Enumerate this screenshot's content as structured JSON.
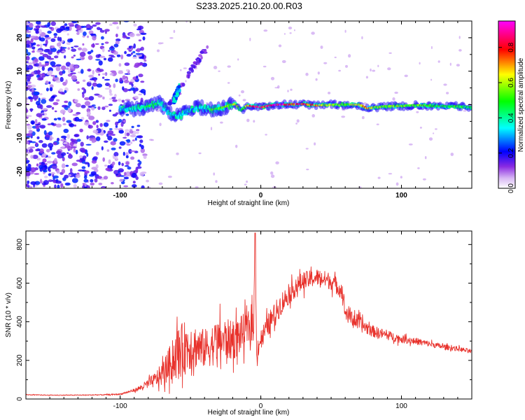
{
  "title": "S233.2025.210.20.00.R03",
  "chart_data": [
    {
      "type": "heatmap",
      "xlabel": "Height of straight line (km)",
      "ylabel": "Frequency (Hz)",
      "xlim": [
        -167,
        150
      ],
      "ylim": [
        -25,
        25
      ],
      "x_ticks": [
        -100,
        0,
        100
      ],
      "x_tick_labels": [
        "-100",
        "0",
        "100"
      ],
      "y_ticks": [
        -20,
        -10,
        0,
        10,
        20
      ],
      "y_tick_labels": [
        "-20",
        "-10",
        "0",
        "10",
        "20"
      ],
      "colorbar": {
        "label": "Normalized spectral amplitude",
        "range": [
          0,
          0.95
        ],
        "ticks": [
          0,
          0.2,
          0.4,
          0.6,
          0.8
        ],
        "tick_labels": [
          "0.0",
          "0.2",
          "0.4",
          "0.6",
          "0.8"
        ],
        "colormap": [
          "#ffffff",
          "#8a2be2",
          "#0000ff",
          "#00ffff",
          "#00ff00",
          "#ffff00",
          "#ff0000",
          "#ff00ff"
        ]
      },
      "ridge": {
        "x": [
          -100,
          -90,
          -80,
          -72,
          -65,
          -58,
          -50,
          -42,
          -35,
          -28,
          -22,
          -18,
          -14,
          -10,
          -5,
          0,
          10,
          20,
          30,
          40,
          50,
          60,
          70,
          76,
          80,
          90,
          100,
          110,
          120,
          130,
          140,
          150
        ],
        "frequency": [
          -1.5,
          -1.2,
          -0.5,
          0.5,
          -2.5,
          -3.5,
          -1.5,
          -0.8,
          -1.5,
          -1.0,
          -0.2,
          0.2,
          -1.8,
          -0.3,
          -0.5,
          -0.8,
          0.0,
          0.0,
          0.2,
          -0.2,
          0.0,
          0.0,
          0.0,
          -1.2,
          -0.8,
          -0.5,
          -0.4,
          -0.2,
          -0.3,
          -0.5,
          -0.5,
          -0.8
        ],
        "amplitude": [
          0.3,
          0.4,
          0.5,
          0.4,
          0.3,
          0.35,
          0.3,
          0.35,
          0.5,
          0.55,
          0.6,
          0.7,
          0.5,
          0.7,
          0.85,
          0.85,
          0.95,
          0.9,
          0.85,
          0.7,
          0.6,
          0.55,
          0.7,
          0.8,
          0.6,
          0.6,
          0.55,
          0.6,
          0.55,
          0.5,
          0.5,
          0.45
        ]
      },
      "branches": [
        {
          "x": [
            -65,
            -55,
            -50,
            -45,
            -38
          ],
          "frequency": [
            0,
            6,
            10,
            13,
            17
          ],
          "amplitude": 0.15
        },
        {
          "x": [
            -62,
            -60,
            -58
          ],
          "frequency": [
            1,
            3,
            5
          ],
          "amplitude": 0.35
        }
      ]
    },
    {
      "type": "line",
      "xlabel": "Height of straight line (km)",
      "ylabel": "SNR (10 * v/v)",
      "xlim": [
        -167,
        150
      ],
      "ylim": [
        0,
        870
      ],
      "x_ticks": [
        -100,
        0,
        100
      ],
      "x_tick_labels": [
        "-100",
        "0",
        "100"
      ],
      "y_ticks": [
        0,
        200,
        400,
        600,
        800
      ],
      "y_tick_labels": [
        "0",
        "200",
        "400",
        "600",
        "800"
      ],
      "series": [
        {
          "color": "#e8322c",
          "x": [
            -167,
            -150,
            -130,
            -110,
            -100,
            -95,
            -90,
            -85,
            -80,
            -75,
            -70,
            -65,
            -60,
            -55,
            -50,
            -45,
            -40,
            -35,
            -30,
            -25,
            -20,
            -15,
            -10,
            -5,
            -4,
            -3,
            0,
            5,
            10,
            15,
            20,
            25,
            30,
            35,
            40,
            45,
            50,
            55,
            58,
            60,
            65,
            70,
            75,
            80,
            90,
            100,
            110,
            120,
            130,
            140,
            150
          ],
          "values": [
            22,
            20,
            20,
            22,
            25,
            35,
            45,
            60,
            80,
            100,
            130,
            180,
            230,
            260,
            280,
            270,
            260,
            280,
            300,
            310,
            300,
            330,
            360,
            390,
            860,
            250,
            310,
            380,
            440,
            500,
            540,
            580,
            610,
            620,
            630,
            620,
            610,
            580,
            560,
            450,
            420,
            390,
            370,
            350,
            330,
            310,
            300,
            285,
            270,
            260,
            245
          ],
          "noise": [
            2,
            2,
            2,
            3,
            4,
            6,
            8,
            15,
            25,
            40,
            60,
            90,
            130,
            140,
            130,
            110,
            100,
            110,
            110,
            110,
            100,
            100,
            90,
            90,
            0,
            60,
            50,
            60,
            60,
            60,
            50,
            50,
            50,
            45,
            45,
            45,
            45,
            45,
            45,
            50,
            45,
            40,
            35,
            30,
            25,
            20,
            18,
            15,
            14,
            12,
            12
          ]
        }
      ]
    }
  ]
}
